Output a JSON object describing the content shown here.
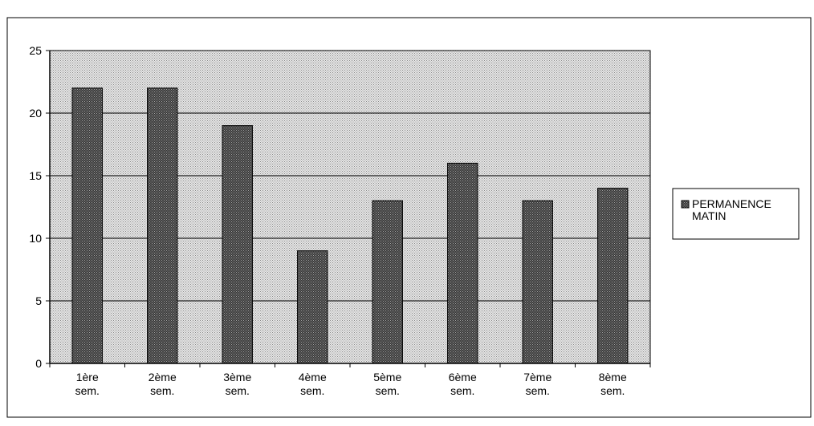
{
  "chart_data": {
    "type": "bar",
    "title": "",
    "xlabel": "",
    "ylabel": "",
    "ylim": [
      0,
      25
    ],
    "yticks": [
      0,
      5,
      10,
      15,
      20,
      25
    ],
    "grid": true,
    "legend_position": "right",
    "categories": [
      [
        "1ère",
        "sem."
      ],
      [
        "2ème",
        "sem."
      ],
      [
        "3ème",
        "sem."
      ],
      [
        "4ème",
        "sem."
      ],
      [
        "5ème",
        "sem."
      ],
      [
        "6ème",
        "sem."
      ],
      [
        "7ème",
        "sem."
      ],
      [
        "8ème",
        "sem."
      ]
    ],
    "series": [
      {
        "name": "PERMANENCE MATIN",
        "name_lines": [
          "PERMANENCE",
          "MATIN"
        ],
        "values": [
          22,
          22,
          19,
          9,
          13,
          16,
          13,
          14
        ],
        "color": "#4a4a4a"
      }
    ],
    "plot_background": "#d4d4d4"
  }
}
